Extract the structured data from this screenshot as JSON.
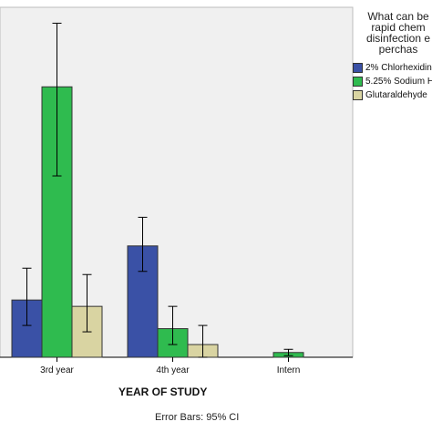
{
  "chart_data": {
    "type": "bar",
    "categories": [
      "3rd year",
      "4th year",
      "Intern"
    ],
    "series": [
      {
        "name": "2% Chlorhexidin",
        "color": "#3a51a6",
        "values": [
          18,
          35,
          0
        ],
        "err_low": [
          10,
          27,
          0
        ],
        "err_high": [
          28,
          44,
          0
        ]
      },
      {
        "name": "5.25% Sodium H",
        "color": "#2fbb4f",
        "values": [
          85,
          9,
          1.5
        ],
        "err_low": [
          57,
          4,
          0.5
        ],
        "err_high": [
          105,
          16,
          2.5
        ]
      },
      {
        "name": "Glutaraldehyde",
        "color": "#d9d4a2",
        "values": [
          16,
          4,
          0
        ],
        "err_low": [
          8,
          0,
          0
        ],
        "err_high": [
          26,
          10,
          0
        ]
      }
    ],
    "xlabel": "YEAR OF STUDY",
    "legend_title_lines": [
      "What can be",
      "rapid chem",
      "disinfection e",
      "perchas"
    ],
    "legend_position": "right",
    "ylim": [
      0,
      110
    ],
    "grid": false,
    "note": "Error Bars: 95% CI"
  }
}
